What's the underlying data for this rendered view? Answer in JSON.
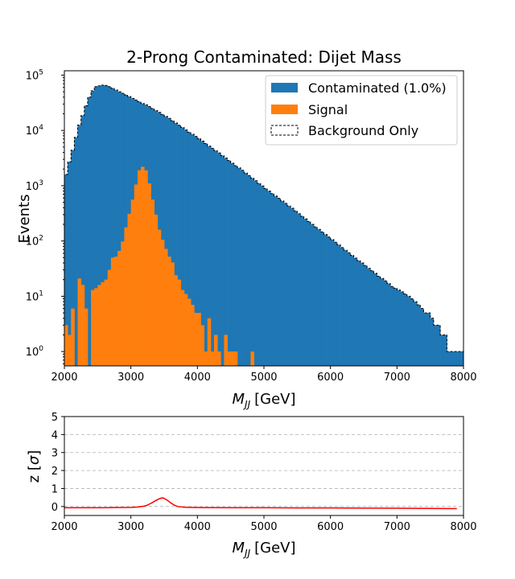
{
  "chart_data": [
    {
      "type": "bar",
      "title": "2-Prong Contaminated: Dijet Mass",
      "xlabel_main": "M",
      "xlabel_sub": "JJ",
      "xlabel_unit": "[GeV]",
      "ylabel": "Events",
      "xlim": [
        2000,
        8000
      ],
      "yscale": "log",
      "ylim": [
        0.55,
        120000
      ],
      "x_ticks": [
        2000,
        3000,
        4000,
        5000,
        6000,
        7000,
        8000
      ],
      "y_ticks": [
        {
          "base": "10",
          "exp": "0"
        },
        {
          "base": "10",
          "exp": "1"
        },
        {
          "base": "10",
          "exp": "2"
        },
        {
          "base": "10",
          "exp": "3"
        },
        {
          "base": "10",
          "exp": "4"
        },
        {
          "base": "10",
          "exp": "5"
        }
      ],
      "bin_start": 2000,
      "bin_width": 50,
      "legend_position": "top-right",
      "series": [
        {
          "name": "Contaminated (1.0%)",
          "color": "#1f77b4",
          "style": "filled",
          "values": [
            1600,
            2700,
            4400,
            7500,
            12500,
            18600,
            28000,
            40000,
            52000,
            62000,
            64000,
            66000,
            65000,
            62000,
            58000,
            54000,
            50000,
            47000,
            44000,
            41000,
            38000,
            35500,
            33000,
            30800,
            29000,
            27000,
            25000,
            23000,
            21200,
            19500,
            18000,
            16500,
            15000,
            13600,
            12400,
            11300,
            10200,
            9300,
            8500,
            7800,
            7100,
            6400,
            5800,
            5200,
            4750,
            4300,
            3900,
            3500,
            3150,
            2850,
            2550,
            2300,
            2100,
            1900,
            1700,
            1520,
            1370,
            1230,
            1100,
            990,
            890,
            800,
            720,
            650,
            590,
            530,
            480,
            430,
            390,
            350,
            310,
            280,
            250,
            225,
            200,
            180,
            162,
            146,
            131,
            118,
            106,
            95,
            85,
            76,
            68,
            61,
            55,
            49,
            44,
            40,
            36,
            32,
            29,
            26,
            23,
            21,
            19,
            17,
            15,
            14,
            13,
            12,
            11,
            10,
            9,
            8,
            7,
            6,
            5,
            5,
            4,
            3,
            3,
            2,
            2,
            1,
            1,
            1,
            1,
            1
          ]
        },
        {
          "name": "Signal",
          "color": "#ff7f0e",
          "style": "filled",
          "values": [
            3,
            2,
            6,
            0,
            21,
            16,
            6,
            0,
            13,
            14,
            16,
            18,
            20,
            30,
            50,
            52,
            66,
            98,
            176,
            310,
            560,
            1050,
            1900,
            2200,
            1900,
            1100,
            560,
            300,
            160,
            105,
            72,
            52,
            41,
            24,
            20,
            13,
            11,
            9,
            7,
            5,
            5,
            3,
            1,
            4,
            1,
            2,
            1,
            0,
            2,
            1,
            1,
            1,
            0,
            0,
            0,
            0,
            1,
            0,
            0,
            0,
            0,
            0,
            0,
            0,
            0,
            0,
            0,
            0,
            0,
            0,
            0,
            0,
            0,
            0,
            0,
            0,
            0,
            0,
            0,
            0,
            0,
            0,
            0,
            0,
            0,
            0,
            0,
            0,
            0,
            0,
            0,
            0,
            0,
            0,
            0,
            0,
            0,
            0,
            0,
            0,
            0,
            0,
            0,
            0,
            0,
            0,
            0,
            0,
            0,
            0,
            0,
            0,
            0,
            0,
            0,
            0
          ]
        },
        {
          "name": "Background Only",
          "color": "#000000",
          "style": "dashed-step",
          "values": [
            1600,
            2700,
            4400,
            7500,
            12500,
            18600,
            28000,
            40000,
            52000,
            62000,
            64000,
            66000,
            65000,
            62000,
            58000,
            54000,
            50000,
            47000,
            44000,
            41000,
            38000,
            35500,
            33000,
            30800,
            29000,
            27000,
            25000,
            23000,
            21200,
            19500,
            18000,
            16500,
            15000,
            13600,
            12400,
            11300,
            10200,
            9300,
            8500,
            7800,
            7100,
            6400,
            5800,
            5200,
            4750,
            4300,
            3900,
            3500,
            3150,
            2850,
            2550,
            2300,
            2100,
            1900,
            1700,
            1520,
            1370,
            1230,
            1100,
            990,
            890,
            800,
            720,
            650,
            590,
            530,
            480,
            430,
            390,
            350,
            310,
            280,
            250,
            225,
            200,
            180,
            162,
            146,
            131,
            118,
            106,
            95,
            85,
            76,
            68,
            61,
            55,
            49,
            44,
            40,
            36,
            32,
            29,
            26,
            23,
            21,
            19,
            17,
            15,
            14,
            13,
            12,
            11,
            10,
            9,
            8,
            7,
            6,
            5,
            5,
            4,
            3,
            3,
            2,
            2,
            1,
            1,
            1,
            1,
            1
          ]
        }
      ]
    },
    {
      "type": "line",
      "xlabel_main": "M",
      "xlabel_sub": "JJ",
      "xlabel_unit": "[GeV]",
      "ylabel_main": "z [",
      "ylabel_sym": "σ",
      "ylabel_end": "]",
      "xlim": [
        2000,
        8000
      ],
      "ylim": [
        -0.5,
        5
      ],
      "x_ticks": [
        2000,
        3000,
        4000,
        5000,
        6000,
        7000,
        8000
      ],
      "y_ticks": [
        0,
        1,
        2,
        3,
        4,
        5
      ],
      "grid": "horizontal dashed",
      "series": [
        {
          "color": "#ff0000",
          "x": [
            2000,
            2200,
            2400,
            2600,
            2800,
            3000,
            3100,
            3200,
            3250,
            3300,
            3350,
            3400,
            3450,
            3480,
            3500,
            3550,
            3600,
            3650,
            3700,
            3800,
            3900,
            4000,
            4500,
            5000,
            5500,
            6000,
            6500,
            7000,
            7500,
            7900
          ],
          "y": [
            -0.07,
            -0.07,
            -0.07,
            -0.07,
            -0.06,
            -0.05,
            -0.03,
            0.02,
            0.08,
            0.17,
            0.28,
            0.38,
            0.46,
            0.48,
            0.45,
            0.34,
            0.2,
            0.08,
            0.0,
            -0.04,
            -0.05,
            -0.06,
            -0.07,
            -0.07,
            -0.08,
            -0.08,
            -0.09,
            -0.1,
            -0.11,
            -0.12
          ]
        }
      ]
    }
  ]
}
